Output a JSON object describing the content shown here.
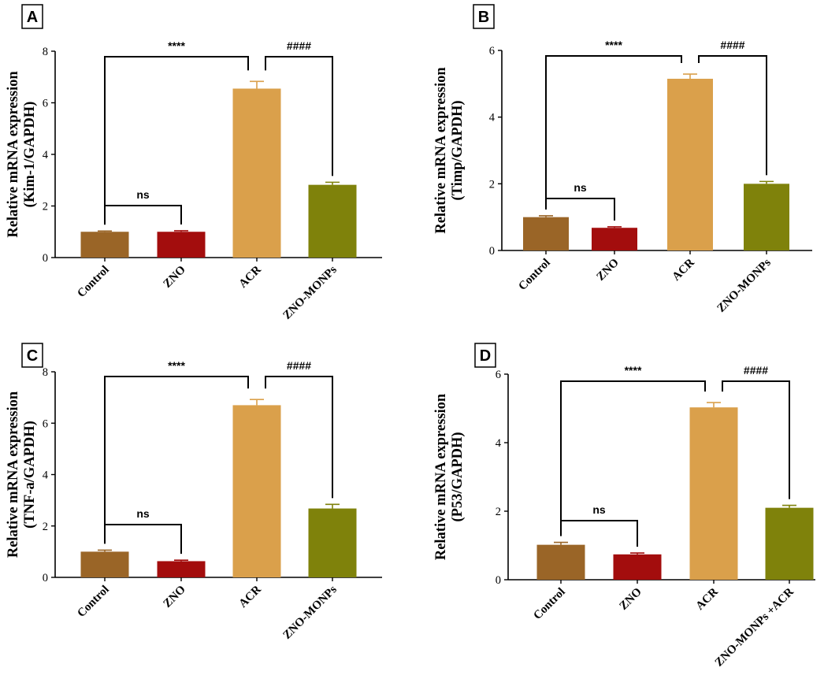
{
  "chart_data": [
    {
      "type": "bar",
      "panel_label": "A",
      "ylabel_line1": "Relative mRNA expression",
      "ylabel_line2": "(Kim-1/GAPDH)",
      "ylim": [
        0,
        8
      ],
      "yticks": [
        0,
        2,
        4,
        6,
        8
      ],
      "categories": [
        "Control",
        "ZNO",
        "ACR",
        "ZNO-MONPs"
      ],
      "values": [
        1.0,
        1.0,
        6.55,
        2.82
      ],
      "errors": [
        0.03,
        0.04,
        0.28,
        0.1
      ],
      "bar_colors": [
        "#9a6527",
        "#a30d0d",
        "#daa04b",
        "#7f820b"
      ],
      "comparisons": [
        {
          "from": 0,
          "to": 1,
          "label": "ns"
        },
        {
          "from": 0,
          "to": 2,
          "label": "****"
        },
        {
          "from": 2,
          "to": 3,
          "label": "####"
        }
      ]
    },
    {
      "type": "bar",
      "panel_label": "B",
      "ylabel_line1": "Relative mRNA expression",
      "ylabel_line2": "(Timp/GAPDH)",
      "ylim": [
        0,
        6
      ],
      "yticks": [
        0,
        2,
        4,
        6
      ],
      "categories": [
        "Control",
        "ZNO",
        "ACR",
        "ZNO-MONPs"
      ],
      "values": [
        1.0,
        0.68,
        5.15,
        2.0
      ],
      "errors": [
        0.04,
        0.03,
        0.14,
        0.07
      ],
      "bar_colors": [
        "#9a6527",
        "#a30d0d",
        "#daa04b",
        "#7f820b"
      ],
      "comparisons": [
        {
          "from": 0,
          "to": 1,
          "label": "ns"
        },
        {
          "from": 0,
          "to": 2,
          "label": "****"
        },
        {
          "from": 2,
          "to": 3,
          "label": "####"
        }
      ]
    },
    {
      "type": "bar",
      "panel_label": "C",
      "ylabel_line1": "Relative mRNA expression",
      "ylabel_line2": "(TNF-a/GAPDH)",
      "ylim": [
        0,
        8
      ],
      "yticks": [
        0,
        2,
        4,
        6,
        8
      ],
      "categories": [
        "Control",
        "ZNO",
        "ACR",
        "ZNO-MONPs"
      ],
      "values": [
        1.0,
        0.63,
        6.7,
        2.68
      ],
      "errors": [
        0.06,
        0.04,
        0.22,
        0.16
      ],
      "bar_colors": [
        "#9a6527",
        "#a30d0d",
        "#daa04b",
        "#7f820b"
      ],
      "comparisons": [
        {
          "from": 0,
          "to": 1,
          "label": "ns"
        },
        {
          "from": 0,
          "to": 2,
          "label": "****"
        },
        {
          "from": 2,
          "to": 3,
          "label": "####"
        }
      ]
    },
    {
      "type": "bar",
      "panel_label": "D",
      "ylabel_line1": "Relative mRNA expression",
      "ylabel_line2": "(P53/GAPDH)",
      "ylim": [
        0,
        6
      ],
      "yticks": [
        0,
        2,
        4,
        6
      ],
      "categories": [
        "Control",
        "ZNO",
        "ACR",
        "ZNO-MONPs +ACR"
      ],
      "values": [
        1.02,
        0.74,
        5.03,
        2.1
      ],
      "errors": [
        0.07,
        0.04,
        0.14,
        0.07
      ],
      "bar_colors": [
        "#9a6527",
        "#a30d0d",
        "#daa04b",
        "#7f820b"
      ],
      "comparisons": [
        {
          "from": 0,
          "to": 1,
          "label": "ns"
        },
        {
          "from": 0,
          "to": 2,
          "label": "****"
        },
        {
          "from": 2,
          "to": 3,
          "label": "####"
        }
      ]
    }
  ]
}
